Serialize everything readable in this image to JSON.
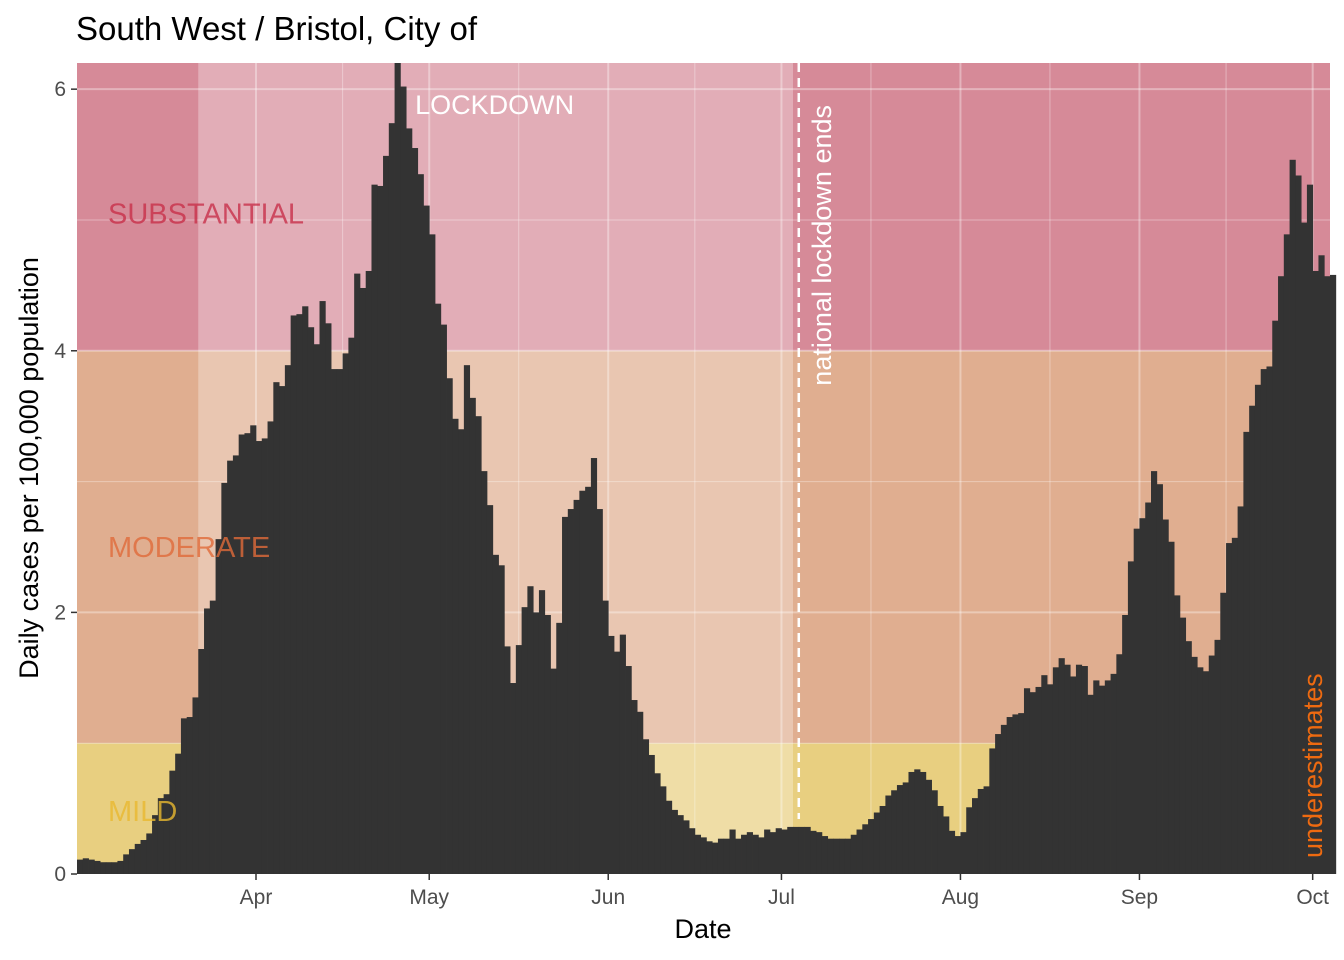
{
  "chart_data": {
    "type": "bar",
    "title": "South West / Bristol, City of",
    "xlabel": "Date",
    "ylabel": "Daily cases per 100,000 population",
    "ylim": [
      0,
      6.2
    ],
    "y_ticks": [
      0,
      2,
      4,
      6
    ],
    "x_ticks": [
      {
        "label": "Apr",
        "date": "2020-04-01"
      },
      {
        "label": "May",
        "date": "2020-05-01"
      },
      {
        "label": "Jun",
        "date": "2020-06-01"
      },
      {
        "label": "Jul",
        "date": "2020-07-01"
      },
      {
        "label": "Aug",
        "date": "2020-08-01"
      },
      {
        "label": "Sep",
        "date": "2020-09-01"
      },
      {
        "label": "Oct",
        "date": "2020-10-01"
      }
    ],
    "x_range": [
      "2020-03-01",
      "2020-10-04"
    ],
    "grid": true,
    "background_color": "#ebebeb",
    "bar_color": "#333333",
    "bands": [
      {
        "label": "MILD",
        "from": 0,
        "to": 1,
        "color": "#e8cf80",
        "text_color": "#e8b830"
      },
      {
        "label": "MODERATE",
        "from": 1,
        "to": 4,
        "color": "#e0ae90",
        "text_color": "#e06a3a"
      },
      {
        "label": "SUBSTANTIAL",
        "from": 4,
        "to": 6.2,
        "color": "#d68a98",
        "text_color": "#c8304a"
      }
    ],
    "lockdown": {
      "label": "LOCKDOWN",
      "from": "2020-03-22",
      "to": "2020-07-03",
      "color": "#ffffff"
    },
    "lockdown_end": {
      "label": "national lockdown ends",
      "date": "2020-07-04",
      "color": "#ffffff"
    },
    "underestimate_note": {
      "label": "underestimates",
      "color": "#ee6a10"
    },
    "series": [
      {
        "start_date": "2020-03-01",
        "values": [
          0.11,
          0.12,
          0.11,
          0.1,
          0.09,
          0.09,
          0.09,
          0.1,
          0.15,
          0.19,
          0.23,
          0.26,
          0.31,
          0.45,
          0.58,
          0.61,
          0.79,
          0.92,
          1.19,
          1.2,
          1.35,
          1.72,
          2.03,
          2.09,
          2.56,
          2.99,
          3.16,
          3.2,
          3.36,
          3.37,
          3.43,
          3.31,
          3.33,
          3.46,
          3.76,
          3.73,
          3.89,
          4.27,
          4.28,
          4.34,
          4.18,
          4.05,
          4.38,
          4.21,
          3.86,
          3.86,
          3.98,
          4.1,
          4.59,
          4.48,
          4.61,
          5.27,
          5.26,
          5.49,
          5.74,
          6.28,
          6.02,
          5.7,
          5.55,
          5.35,
          5.11,
          4.89,
          4.36,
          4.2,
          3.79,
          3.48,
          3.4,
          3.89,
          3.64,
          3.5,
          3.08,
          2.82,
          2.44,
          2.36,
          1.74,
          1.46,
          1.75,
          2.04,
          2.2,
          2.0,
          2.17,
          1.98,
          1.57,
          1.92,
          2.73,
          2.79,
          2.86,
          2.93,
          2.96,
          3.18,
          2.79,
          2.09,
          1.82,
          1.7,
          1.83,
          1.59,
          1.33,
          1.24,
          1.03,
          0.91,
          0.77,
          0.67,
          0.56,
          0.49,
          0.45,
          0.41,
          0.35,
          0.3,
          0.28,
          0.25,
          0.24,
          0.27,
          0.27,
          0.34,
          0.27,
          0.3,
          0.32,
          0.3,
          0.28,
          0.34,
          0.32,
          0.35,
          0.34,
          0.36,
          0.36,
          0.36,
          0.36,
          0.33,
          0.32,
          0.29,
          0.27,
          0.27,
          0.27,
          0.27,
          0.3,
          0.34,
          0.38,
          0.42,
          0.47,
          0.52,
          0.6,
          0.64,
          0.68,
          0.7,
          0.78,
          0.8,
          0.78,
          0.72,
          0.64,
          0.52,
          0.44,
          0.33,
          0.29,
          0.32,
          0.51,
          0.58,
          0.65,
          0.67,
          0.96,
          1.07,
          1.14,
          1.2,
          1.22,
          1.23,
          1.42,
          1.39,
          1.43,
          1.52,
          1.45,
          1.58,
          1.65,
          1.6,
          1.51,
          1.6,
          1.59,
          1.37,
          1.48,
          1.44,
          1.48,
          1.53,
          1.68,
          1.98,
          2.39,
          2.64,
          2.72,
          2.84,
          3.08,
          2.98,
          2.71,
          2.54,
          2.13,
          1.96,
          1.78,
          1.66,
          1.58,
          1.55,
          1.67,
          1.79,
          2.15,
          2.53,
          2.57,
          2.81,
          3.38,
          3.58,
          3.74,
          3.86,
          3.88,
          4.23,
          4.57,
          4.89,
          5.46,
          5.34,
          4.98,
          5.27,
          4.61,
          4.73,
          4.57,
          4.58
        ]
      }
    ]
  }
}
